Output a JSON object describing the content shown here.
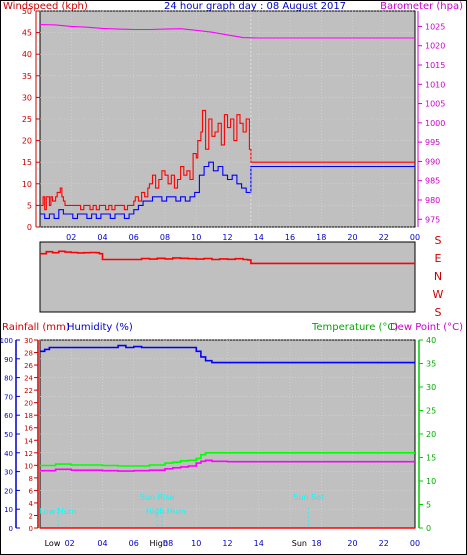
{
  "header": {
    "left_label": "Windspeed (kph)",
    "center_label": "24 hour graph day : 08 August 2017",
    "right_label": "Barometer (hpa)"
  },
  "colors": {
    "background": "#ffffff",
    "plot_bg": "#c0c0c0",
    "wind_gust": "#ff0000",
    "wind_avg": "#0000ff",
    "barometer": "#ff00ff",
    "direction": "#ff0000",
    "humidity": "#0000ff",
    "temperature": "#00ff00",
    "dew_point": "#ff00ff",
    "rainfall": "#ff0000",
    "sun_markers": "#00ffff",
    "now_line": "#ffffff"
  },
  "chart_data": [
    {
      "type": "line",
      "panel": "wind-barometer",
      "title": "24 hour graph day : 08 August 2017",
      "ylabel_left": "Windspeed (kph)",
      "ylabel_right": "Barometer (hpa)",
      "x_tick_labels": [
        "02",
        "04",
        "06",
        "08",
        "10",
        "12",
        "14",
        "16",
        "18",
        "20",
        "22",
        "00"
      ],
      "y_left_ticks": [
        "0",
        "5",
        "10",
        "15",
        "20",
        "25",
        "30",
        "35",
        "40",
        "45",
        "50"
      ],
      "y_right_ticks": [
        "975",
        "980",
        "985",
        "990",
        "995",
        "1000",
        "1005",
        "1010",
        "1015",
        "1020",
        "1025"
      ],
      "ylim_left": [
        0,
        50
      ],
      "ylim_right": [
        973,
        1029
      ],
      "xlim": [
        0,
        24
      ],
      "grid": true,
      "series": [
        {
          "name": "Windspeed",
          "color": "#ff0000",
          "axis": "left",
          "x": [
            0.0,
            0.2,
            0.3,
            0.4,
            0.6,
            0.7,
            0.8,
            1.0,
            1.1,
            1.3,
            1.4,
            1.5,
            1.6,
            1.8,
            2.0,
            2.2,
            2.4,
            2.6,
            2.8,
            3.0,
            3.2,
            3.4,
            3.6,
            3.8,
            4.0,
            4.2,
            4.4,
            4.6,
            4.8,
            5.0,
            5.2,
            5.4,
            5.6,
            5.8,
            6.0,
            6.1,
            6.3,
            6.5,
            6.7,
            6.9,
            7.0,
            7.2,
            7.4,
            7.6,
            7.8,
            8.0,
            8.2,
            8.4,
            8.6,
            8.8,
            9.0,
            9.2,
            9.4,
            9.6,
            9.8,
            10.0,
            10.1,
            10.3,
            10.4,
            10.6,
            10.8,
            11.0,
            11.2,
            11.4,
            11.6,
            11.8,
            12.0,
            12.2,
            12.4,
            12.6,
            12.8,
            13.0,
            13.2,
            13.4,
            13.5,
            14.0,
            16.0,
            18.0,
            20.0,
            22.0,
            24.0
          ],
          "values": [
            5,
            7,
            4,
            7,
            5,
            7,
            6,
            7,
            8,
            9,
            7,
            6,
            5,
            5,
            5,
            5,
            5,
            4,
            5,
            5,
            4,
            5,
            4,
            5,
            5,
            4,
            5,
            4,
            5,
            5,
            5,
            4,
            5,
            5,
            6,
            7,
            6,
            8,
            7,
            9,
            10,
            12,
            9,
            11,
            13,
            12,
            10,
            12,
            9,
            11,
            14,
            12,
            13,
            11,
            17,
            16,
            20,
            22,
            27,
            18,
            25,
            21,
            22,
            24,
            19,
            26,
            23,
            25,
            20,
            26,
            24,
            22,
            25,
            18,
            15,
            15,
            15,
            15,
            15,
            15,
            15
          ]
        },
        {
          "name": "Average",
          "color": "#0000ff",
          "axis": "left",
          "x": [
            0.0,
            0.3,
            0.6,
            0.9,
            1.2,
            1.5,
            1.8,
            2.1,
            2.4,
            2.7,
            3.0,
            3.3,
            3.6,
            3.9,
            4.2,
            4.5,
            4.8,
            5.1,
            5.4,
            5.7,
            6.0,
            6.3,
            6.6,
            6.9,
            7.2,
            7.5,
            7.8,
            8.1,
            8.4,
            8.7,
            9.0,
            9.3,
            9.6,
            9.9,
            10.2,
            10.5,
            10.8,
            11.1,
            11.4,
            11.7,
            12.0,
            12.3,
            12.6,
            12.9,
            13.2,
            13.5,
            14.0,
            16.0,
            18.0,
            20.0,
            22.0,
            24.0
          ],
          "values": [
            3,
            2,
            3,
            2,
            4,
            3,
            3,
            2,
            3,
            3,
            2,
            3,
            2,
            3,
            3,
            2,
            3,
            3,
            2,
            3,
            4,
            5,
            6,
            6,
            7,
            7,
            6,
            7,
            7,
            6,
            7,
            6,
            7,
            8,
            12,
            14,
            15,
            13,
            14,
            12,
            11,
            12,
            10,
            9,
            8,
            14,
            14,
            14,
            14,
            14,
            14,
            14
          ]
        },
        {
          "name": "Barometer",
          "color": "#ff00ff",
          "axis": "right",
          "x": [
            0,
            1,
            2,
            3,
            4,
            5,
            6,
            7,
            8,
            9,
            10,
            11,
            12,
            13,
            14,
            16,
            18,
            20,
            22,
            24
          ],
          "values": [
            1025.5,
            1025.4,
            1025,
            1024.8,
            1024.5,
            1024.3,
            1024.2,
            1024.2,
            1024.3,
            1024.4,
            1024,
            1023.5,
            1022.8,
            1022.1,
            1022,
            1022,
            1022,
            1022,
            1022,
            1022
          ]
        }
      ]
    },
    {
      "type": "line",
      "panel": "wind-direction",
      "compass_labels": [
        "S",
        "E",
        "N",
        "W",
        "S"
      ],
      "ylim": [
        0,
        360
      ],
      "xlim": [
        0,
        24
      ],
      "series": [
        {
          "name": "Direction",
          "color": "#ff0000",
          "x": [
            0,
            0.4,
            0.8,
            1.2,
            1.6,
            2.0,
            2.4,
            2.8,
            3.2,
            3.6,
            3.8,
            4.0,
            5.0,
            6.0,
            6.5,
            7.0,
            7.5,
            8.0,
            8.5,
            9.0,
            9.5,
            10.0,
            10.5,
            11.0,
            11.5,
            12.0,
            12.5,
            13.0,
            13.3,
            13.5,
            14.0,
            16.0,
            18.0,
            20.0,
            22.0,
            24.0
          ],
          "values": [
            300,
            310,
            305,
            312,
            308,
            306,
            304,
            305,
            306,
            305,
            300,
            270,
            270,
            270,
            275,
            272,
            276,
            273,
            278,
            276,
            274,
            272,
            275,
            270,
            273,
            271,
            274,
            270,
            268,
            250,
            250,
            250,
            250,
            250,
            250,
            250
          ]
        }
      ]
    },
    {
      "type": "line",
      "panel": "rain-humidity-temperature",
      "ylabel_left": "Rainfall (mm)",
      "ylabel_left2": "Humidity (%)",
      "ylabel_right": "Temperature (°C)",
      "ylabel_right2": "Dew Point (°C)",
      "x_tick_labels": [
        "02",
        "04",
        "06",
        "08",
        "10",
        "12",
        "14",
        "16",
        "18",
        "20",
        "22",
        "00"
      ],
      "humidity_ticks": [
        "0",
        "10",
        "20",
        "30",
        "40",
        "50",
        "60",
        "70",
        "80",
        "90",
        "100"
      ],
      "rain_ticks": [
        "0",
        "2",
        "4",
        "6",
        "8",
        "10",
        "12",
        "14",
        "16",
        "18",
        "20",
        "22",
        "24",
        "26",
        "28",
        "30"
      ],
      "temp_ticks": [
        "0",
        "5",
        "10",
        "15",
        "20",
        "25",
        "30",
        "35",
        "40"
      ],
      "ylim_humidity": [
        0,
        100
      ],
      "ylim_rain": [
        0,
        30
      ],
      "ylim_temperature": [
        0,
        40
      ],
      "xlim": [
        0,
        24
      ],
      "grid": true,
      "series": [
        {
          "name": "Humidity",
          "color": "#0000ff",
          "axis": "humidity",
          "x": [
            0,
            0.3,
            0.6,
            1,
            2,
            3,
            4,
            5,
            5.5,
            6,
            6.5,
            7,
            7.5,
            8,
            9,
            9.5,
            10,
            10.3,
            10.6,
            11,
            12,
            14,
            16,
            18,
            20,
            22,
            24
          ],
          "values": [
            94,
            95,
            96,
            96,
            96,
            96,
            96,
            97,
            96,
            96.5,
            96,
            96,
            96,
            96,
            96,
            96,
            94,
            91,
            89,
            88,
            88,
            88,
            88,
            88,
            88,
            88,
            88
          ]
        },
        {
          "name": "Temperature",
          "color": "#00ff00",
          "axis": "temperature",
          "x": [
            0,
            1,
            2,
            3,
            4,
            5,
            6,
            7,
            8,
            8.5,
            9,
            9.5,
            10,
            10.3,
            10.6,
            11,
            12,
            14,
            16,
            18,
            20,
            22,
            24
          ],
          "values": [
            13.3,
            13.6,
            13.4,
            13.4,
            13.3,
            13.2,
            13.2,
            13.4,
            13.8,
            14,
            14.3,
            14.4,
            14.8,
            15.6,
            16,
            16,
            16,
            16,
            16,
            16,
            16,
            16,
            16
          ]
        },
        {
          "name": "Dew Point",
          "color": "#ff00ff",
          "axis": "temperature",
          "x": [
            0,
            1,
            2,
            3,
            4,
            5,
            6,
            7,
            8,
            8.5,
            9,
            9.5,
            10,
            10.3,
            10.6,
            11,
            12,
            14,
            16,
            18,
            20,
            22,
            24
          ],
          "values": [
            12.2,
            12.5,
            12.3,
            12.3,
            12.2,
            12.1,
            12.2,
            12.3,
            12.6,
            12.8,
            13,
            13.2,
            13.8,
            14.2,
            14.4,
            14.2,
            14.1,
            14.1,
            14.1,
            14.1,
            14.1,
            14.1,
            14.1
          ]
        },
        {
          "name": "Rainfall",
          "color": "#ff0000",
          "axis": "rain",
          "x": [
            0,
            24
          ],
          "values": [
            0,
            0
          ]
        }
      ],
      "markers": [
        {
          "label": "Low Hum",
          "x": 1.15
        },
        {
          "label": "Sun Rise",
          "x": 7.5
        },
        {
          "label": "High Hum",
          "x": 7.8
        },
        {
          "label": "Sun Set",
          "x": 17.2
        }
      ],
      "bottom_labels": [
        {
          "label": "Low",
          "x": 0.8
        },
        {
          "label": "02",
          "x": 1.9
        },
        {
          "label": "04",
          "x": 4.0
        },
        {
          "label": "06",
          "x": 6.0
        },
        {
          "label": "High",
          "x": 7.6
        },
        {
          "label": "08",
          "x": 8.2
        },
        {
          "label": "10",
          "x": 10.0
        },
        {
          "label": "12",
          "x": 12.0
        },
        {
          "label": "14",
          "x": 14.0
        },
        {
          "label": "Sun",
          "x": 16.6
        },
        {
          "label": "18",
          "x": 17.7
        },
        {
          "label": "20",
          "x": 20.0
        },
        {
          "label": "22",
          "x": 22.0
        },
        {
          "label": "00",
          "x": 24.0
        }
      ]
    }
  ]
}
